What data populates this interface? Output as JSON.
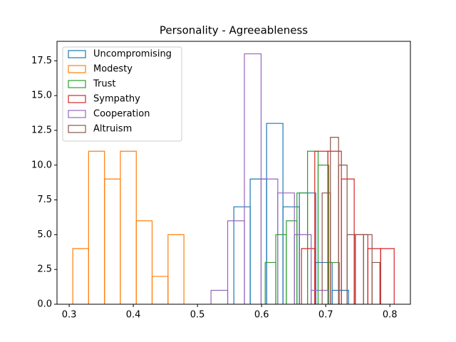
{
  "chart_data": {
    "type": "histogram",
    "title": "Personality - Agreeableness",
    "xlim": [
      0.281,
      0.832
    ],
    "xticks": [
      0.3,
      0.4,
      0.5,
      0.6,
      0.7,
      0.8
    ],
    "ylim": [
      0,
      18.9
    ],
    "yticks": [
      {
        "value": 0,
        "label": "0.0"
      },
      {
        "value": 2.5,
        "label": "2.5"
      },
      {
        "value": 5,
        "label": "5.0"
      },
      {
        "value": 7.5,
        "label": "7.5"
      },
      {
        "value": 10,
        "label": "10.0"
      },
      {
        "value": 12.5,
        "label": "12.5"
      },
      {
        "value": 15,
        "label": "15.0"
      },
      {
        "value": 17.5,
        "label": "17.5"
      }
    ],
    "legend": "upper left",
    "series": [
      {
        "name": "Uncompromising",
        "color": "#1f77b4",
        "bins": [
          0.5567,
          0.5822,
          0.6078,
          0.6333,
          0.6589,
          0.6844,
          0.71,
          0.7356
        ],
        "values": [
          7,
          9,
          13,
          7,
          8,
          3,
          1
        ]
      },
      {
        "name": "Modesty",
        "color": "#ff7f0e",
        "bins": [
          0.3056,
          0.3303,
          0.3551,
          0.3798,
          0.4046,
          0.4293,
          0.4541,
          0.4789
        ],
        "values": [
          4,
          11,
          9,
          11,
          6,
          2,
          5
        ]
      },
      {
        "name": "Trust",
        "color": "#2ca02c",
        "bins": [
          0.6056,
          0.6221,
          0.6386,
          0.6551,
          0.6716,
          0.6881,
          0.7046,
          0.7211
        ],
        "values": [
          3,
          5,
          6,
          8,
          11,
          10,
          3
        ]
      },
      {
        "name": "Sympathy",
        "color": "#d62728",
        "bins": [
          0.6622,
          0.6829,
          0.7033,
          0.7244,
          0.7444,
          0.7656,
          0.7856,
          0.8067
        ],
        "values": [
          4,
          11,
          11,
          9,
          5,
          4,
          4
        ]
      },
      {
        "name": "Cooperation",
        "color": "#9467bd",
        "bins": [
          0.5211,
          0.5471,
          0.5732,
          0.5992,
          0.6252,
          0.6512,
          0.6773,
          0.7033
        ],
        "values": [
          1,
          6,
          18,
          9,
          8,
          5,
          1
        ]
      },
      {
        "name": "Altruism",
        "color": "#8c564b",
        "bins": [
          0.6944,
          0.7073,
          0.72,
          0.7333,
          0.7462,
          0.7589,
          0.7722,
          0.7844
        ],
        "values": [
          8,
          12,
          10,
          5,
          5,
          5,
          3
        ]
      }
    ]
  }
}
